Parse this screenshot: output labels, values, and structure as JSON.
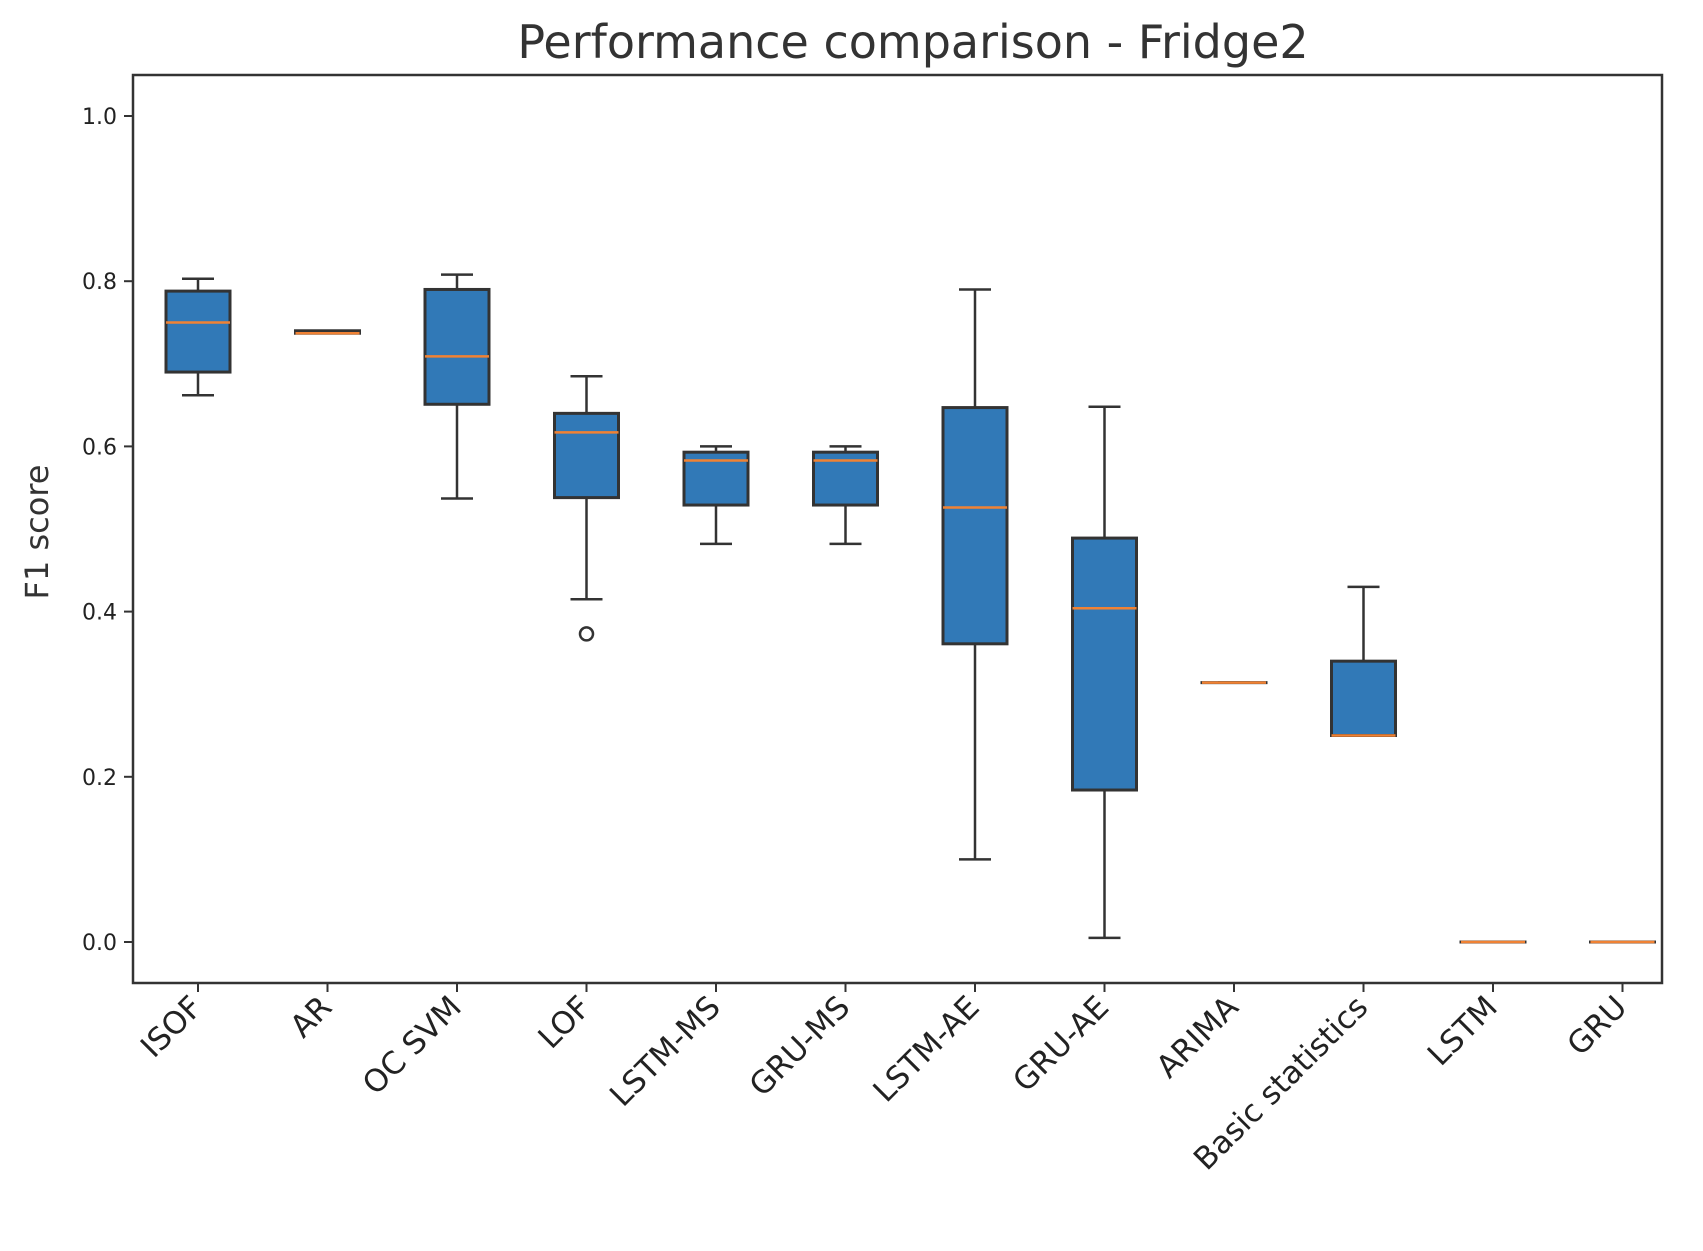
{
  "chart_data": {
    "type": "box",
    "title": "Performance comparison - Fridge2",
    "xlabel": "",
    "ylabel": "F1 score",
    "ylim": [
      -0.05,
      1.05
    ],
    "yticks": [
      "0.0",
      "0.2",
      "0.4",
      "0.6",
      "0.8",
      "1.0"
    ],
    "grid": false,
    "categories": [
      "ISOF",
      "AR",
      "OC SVM",
      "LOF",
      "LSTM-MS",
      "GRU-MS",
      "LSTM-AE",
      "GRU-AE",
      "ARIMA",
      "Basic statistics",
      "LSTM",
      "GRU"
    ],
    "boxes": [
      {
        "label": "ISOF",
        "whislo": 0.662,
        "q1": 0.69,
        "median": 0.75,
        "q3": 0.788,
        "whishi": 0.803,
        "fliers": []
      },
      {
        "label": "AR",
        "whislo": 0.737,
        "q1": 0.737,
        "median": 0.737,
        "q3": 0.74,
        "whishi": 0.74,
        "fliers": []
      },
      {
        "label": "OC SVM",
        "whislo": 0.537,
        "q1": 0.651,
        "median": 0.709,
        "q3": 0.79,
        "whishi": 0.808,
        "fliers": []
      },
      {
        "label": "LOF",
        "whislo": 0.415,
        "q1": 0.538,
        "median": 0.617,
        "q3": 0.64,
        "whishi": 0.685,
        "fliers": [
          0.373
        ]
      },
      {
        "label": "LSTM-MS",
        "whislo": 0.482,
        "q1": 0.529,
        "median": 0.583,
        "q3": 0.593,
        "whishi": 0.6,
        "fliers": []
      },
      {
        "label": "GRU-MS",
        "whislo": 0.482,
        "q1": 0.529,
        "median": 0.583,
        "q3": 0.593,
        "whishi": 0.6,
        "fliers": []
      },
      {
        "label": "LSTM-AE",
        "whislo": 0.1,
        "q1": 0.361,
        "median": 0.526,
        "q3": 0.647,
        "whishi": 0.79,
        "fliers": []
      },
      {
        "label": "GRU-AE",
        "whislo": 0.005,
        "q1": 0.184,
        "median": 0.404,
        "q3": 0.489,
        "whishi": 0.648,
        "fliers": []
      },
      {
        "label": "ARIMA",
        "whislo": 0.314,
        "q1": 0.314,
        "median": 0.314,
        "q3": 0.314,
        "whishi": 0.314,
        "fliers": []
      },
      {
        "label": "Basic statistics",
        "whislo": 0.25,
        "q1": 0.25,
        "median": 0.25,
        "q3": 0.34,
        "whishi": 0.43,
        "fliers": []
      },
      {
        "label": "LSTM",
        "whislo": 0.0,
        "q1": 0.0,
        "median": 0.0,
        "q3": 0.0,
        "whishi": 0.0,
        "fliers": []
      },
      {
        "label": "GRU",
        "whislo": 0.0,
        "q1": 0.0,
        "median": 0.0,
        "q3": 0.0,
        "whishi": 0.0,
        "fliers": []
      }
    ],
    "colors": {
      "box_fill": "#3179b7",
      "box_edge": "#333333",
      "median": "#f08234",
      "axis": "#333333",
      "text": "#333333",
      "background": "#ffffff"
    }
  }
}
